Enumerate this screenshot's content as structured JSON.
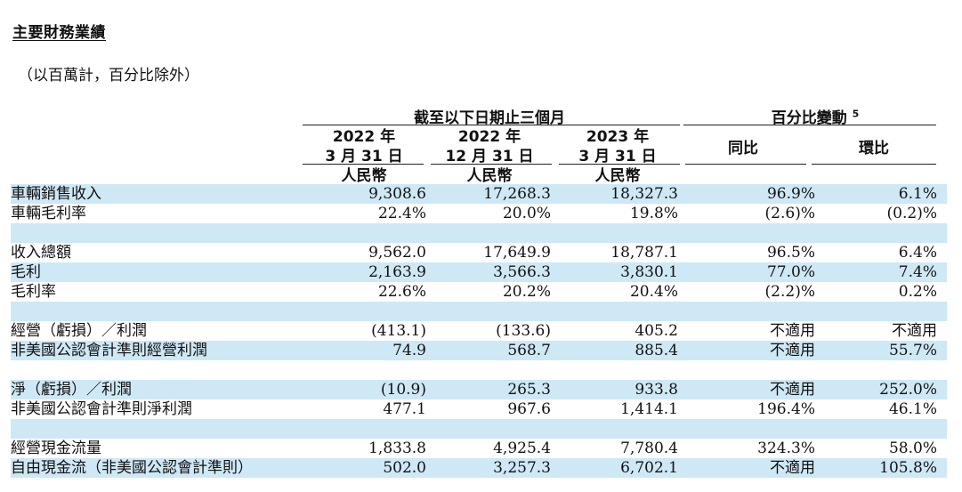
{
  "page_title": "主要財務業績",
  "unit_note": "（以百萬計，百分比除外）",
  "header": {
    "period_group": "截至以下日期止三個月",
    "change_group": "百分比變動",
    "change_footnote": "5",
    "col1": {
      "year": "2022 年",
      "date": "3 月 31 日",
      "currency": "人民幣"
    },
    "col2": {
      "year": "2022 年",
      "date": "12 月 31 日",
      "currency": "人民幣"
    },
    "col3": {
      "year": "2023 年",
      "date": "3 月 31 日",
      "currency": "人民幣"
    },
    "yoy": "同比",
    "qoq": "環比"
  },
  "rows": [
    {
      "label": "車輛銷售收入",
      "v1": "9,308.6",
      "v2": "17,268.3",
      "v3": "18,327.3",
      "yoy": "96.9%",
      "qoq": "6.1%",
      "shade": true
    },
    {
      "label": "車輛毛利率",
      "v1": "22.4%",
      "v2": "20.0%",
      "v3": "19.8%",
      "yoy": "(2.6)%",
      "qoq": "(0.2)%",
      "shade": false
    },
    {
      "label": "",
      "v1": "",
      "v2": "",
      "v3": "",
      "yoy": "",
      "qoq": "",
      "shade": true
    },
    {
      "label": "收入總額",
      "v1": "9,562.0",
      "v2": "17,649.9",
      "v3": "18,787.1",
      "yoy": "96.5%",
      "qoq": "6.4%",
      "shade": false
    },
    {
      "label": "毛利",
      "v1": "2,163.9",
      "v2": "3,566.3",
      "v3": "3,830.1",
      "yoy": "77.0%",
      "qoq": "7.4%",
      "shade": true
    },
    {
      "label": "毛利率",
      "v1": "22.6%",
      "v2": "20.2%",
      "v3": "20.4%",
      "yoy": "(2.2)%",
      "qoq": "0.2%",
      "shade": false
    },
    {
      "label": "",
      "v1": "",
      "v2": "",
      "v3": "",
      "yoy": "",
      "qoq": "",
      "shade": true
    },
    {
      "label": "經營（虧損）／利潤",
      "v1": "(413.1)",
      "v2": "(133.6)",
      "v3": "405.2",
      "yoy": "不適用",
      "qoq": "不適用",
      "shade": false
    },
    {
      "label": "非美國公認會計準則經營利潤",
      "v1": "74.9",
      "v2": "568.7",
      "v3": "885.4",
      "yoy": "不適用",
      "qoq": "55.7%",
      "shade": true
    },
    {
      "label": "",
      "v1": "",
      "v2": "",
      "v3": "",
      "yoy": "",
      "qoq": "",
      "shade": false
    },
    {
      "label": "淨（虧損）／利潤",
      "v1": "(10.9)",
      "v2": "265.3",
      "v3": "933.8",
      "yoy": "不適用",
      "qoq": "252.0%",
      "shade": true
    },
    {
      "label": "非美國公認會計準則淨利潤",
      "v1": "477.1",
      "v2": "967.6",
      "v3": "1,414.1",
      "yoy": "196.4%",
      "qoq": "46.1%",
      "shade": false
    },
    {
      "label": "",
      "v1": "",
      "v2": "",
      "v3": "",
      "yoy": "",
      "qoq": "",
      "shade": true
    },
    {
      "label": "經營現金流量",
      "v1": "1,833.8",
      "v2": "4,925.4",
      "v3": "7,780.4",
      "yoy": "324.3%",
      "qoq": "58.0%",
      "shade": false
    },
    {
      "label": "自由現金流（非美國公認會計準則）",
      "v1": "502.0",
      "v2": "3,257.3",
      "v3": "6,702.1",
      "yoy": "不適用",
      "qoq": "105.8%",
      "shade": true
    }
  ]
}
